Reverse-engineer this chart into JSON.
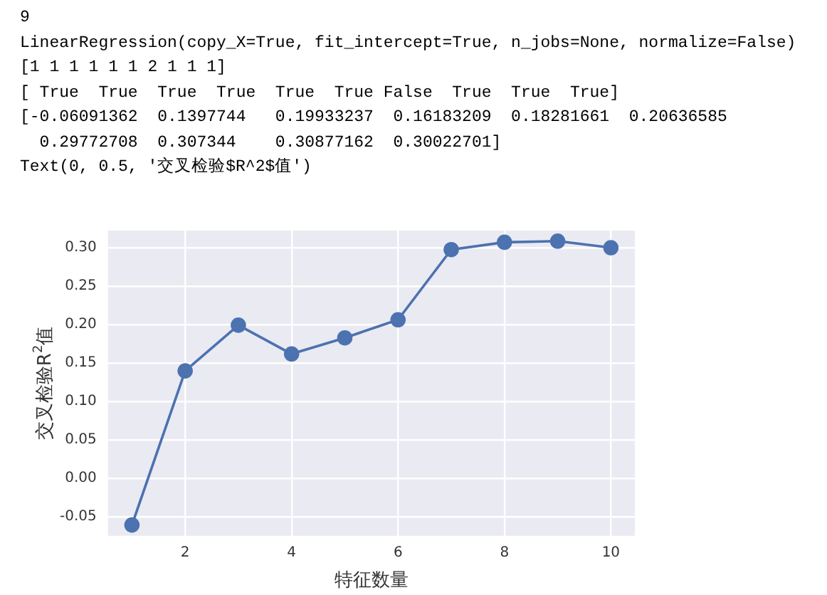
{
  "chart_data": {
    "type": "line",
    "xlabel": "特征数量",
    "ylabel": "交叉检验R$^{2}$值",
    "annotations": [
      "9",
      "LinearRegression(copy_X=True, fit_intercept=True, n_jobs=None, normalize=False)",
      "[1 1 1 1 1 1 2 1 1 1]",
      "[ True  True  True  True  True  True False  True  True  True]",
      "[-0.06091362  0.1397744   0.19933237  0.16183209  0.18281661  0.20636585",
      "  0.29772708  0.307344    0.30877162  0.30022701]",
      "Text(0, 0.5, '交叉检验$R^2$值')"
    ],
    "x": [
      1,
      2,
      3,
      4,
      5,
      6,
      7,
      8,
      9,
      10
    ],
    "series": [
      {
        "color": "#4c72b0",
        "values": [
          -0.06091362,
          0.1397744,
          0.19933237,
          0.16183209,
          0.18281661,
          0.20636585,
          0.29772708,
          0.307344,
          0.30877162,
          0.30022701
        ]
      }
    ],
    "xlim": [
      0.55,
      10.45
    ],
    "xticks": [
      2,
      4,
      6,
      8,
      10
    ],
    "ylim": [
      -0.075,
      0.3225
    ],
    "yticks": [
      {
        "value": -0.05,
        "label": "-0.05"
      },
      {
        "value": 0,
        "label": "0.00"
      },
      {
        "value": 0.05,
        "label": "0.05"
      },
      {
        "value": 0.1,
        "label": "0.10"
      },
      {
        "value": 0.15,
        "label": "0.15"
      },
      {
        "value": 0.2,
        "label": "0.20"
      },
      {
        "value": 0.25,
        "label": "0.25"
      },
      {
        "value": 0.3,
        "label": "0.30"
      }
    ],
    "grid": true,
    "marker": "circle",
    "line_style": "solid",
    "legend": false
  }
}
